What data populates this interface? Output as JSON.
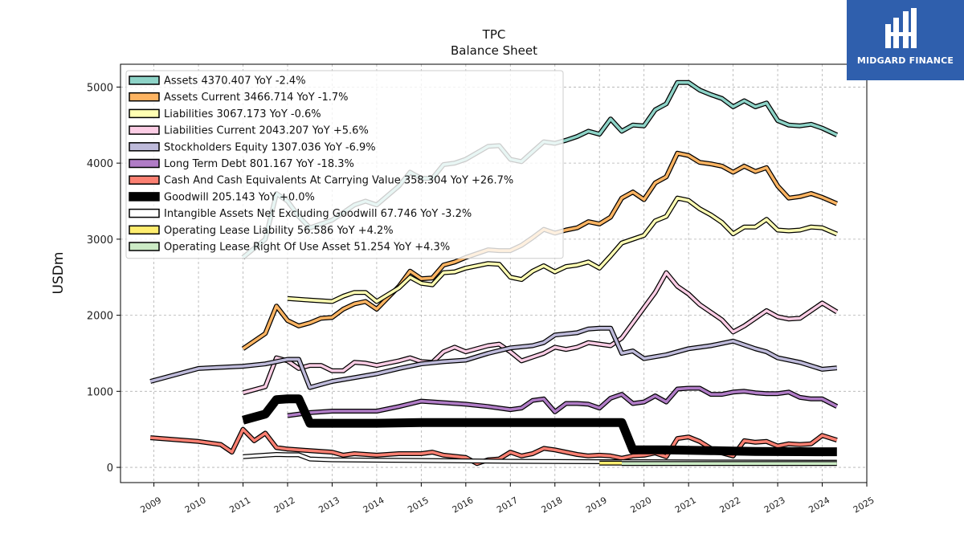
{
  "chart_data": {
    "type": "line",
    "title": "TPC",
    "subtitle": "Balance  Sheet",
    "xlabel": "",
    "ylabel": "USDm",
    "xlim": [
      2008.25,
      2025
    ],
    "ylim": [
      -200,
      5300
    ],
    "yticks": [
      0,
      1000,
      2000,
      3000,
      4000,
      5000
    ],
    "xticks": [
      2009,
      2010,
      2011,
      2012,
      2013,
      2014,
      2015,
      2016,
      2017,
      2018,
      2019,
      2020,
      2021,
      2022,
      2023,
      2024,
      2025
    ],
    "grid": true,
    "legend_position": "top-left",
    "series": [
      {
        "name": "Assets  4370.407 YoY -2.4%",
        "color": "#8dd3c7",
        "x": [
          2011.0,
          2011.5,
          2011.75,
          2012.0,
          2012.25,
          2012.5,
          2013.0,
          2013.25,
          2013.5,
          2013.75,
          2014.0,
          2014.5,
          2014.75,
          2015.0,
          2015.25,
          2015.5,
          2015.75,
          2016.0,
          2016.5,
          2016.75,
          2017.0,
          2017.25,
          2017.5,
          2017.75,
          2018.0,
          2018.25,
          2018.5,
          2018.75,
          2019.0,
          2019.25,
          2019.5,
          2019.75,
          2020.0,
          2020.25,
          2020.5,
          2020.75,
          2021.0,
          2021.25,
          2021.5,
          2021.75,
          2022.0,
          2022.25,
          2022.5,
          2022.75,
          2023.0,
          2023.25,
          2023.5,
          2023.75,
          2024.0,
          2024.33
        ],
        "y": [
          2760,
          3000,
          3600,
          3500,
          3300,
          3150,
          3250,
          3350,
          3450,
          3500,
          3450,
          3700,
          3880,
          3800,
          3800,
          3980,
          4000,
          4050,
          4220,
          4230,
          4050,
          4020,
          4150,
          4280,
          4260,
          4300,
          4350,
          4420,
          4380,
          4580,
          4420,
          4500,
          4490,
          4700,
          4780,
          5060,
          5060,
          4960,
          4900,
          4850,
          4740,
          4820,
          4740,
          4790,
          4560,
          4500,
          4490,
          4510,
          4460,
          4370
        ]
      },
      {
        "name": "Assets Current  3466.714 YoY -1.7%",
        "color": "#fdb462",
        "x": [
          2011.0,
          2011.5,
          2011.75,
          2012.0,
          2012.25,
          2012.5,
          2012.75,
          2013.0,
          2013.25,
          2013.5,
          2013.75,
          2014.0,
          2014.5,
          2014.75,
          2015.0,
          2015.25,
          2015.5,
          2015.75,
          2016.0,
          2016.5,
          2016.75,
          2017.0,
          2017.25,
          2017.5,
          2017.75,
          2018.0,
          2018.25,
          2018.5,
          2018.75,
          2019.0,
          2019.25,
          2019.5,
          2019.75,
          2020.0,
          2020.25,
          2020.5,
          2020.75,
          2021.0,
          2021.25,
          2021.5,
          2021.75,
          2022.0,
          2022.25,
          2022.5,
          2022.75,
          2023.0,
          2023.25,
          2023.5,
          2023.75,
          2024.0,
          2024.33
        ],
        "y": [
          1560,
          1760,
          2120,
          1930,
          1860,
          1900,
          1960,
          1970,
          2080,
          2150,
          2180,
          2080,
          2380,
          2580,
          2480,
          2490,
          2660,
          2700,
          2760,
          2860,
          2850,
          2850,
          2920,
          3020,
          3130,
          3080,
          3120,
          3150,
          3230,
          3200,
          3290,
          3540,
          3620,
          3520,
          3740,
          3820,
          4130,
          4100,
          4010,
          3990,
          3960,
          3880,
          3960,
          3890,
          3940,
          3700,
          3540,
          3560,
          3600,
          3550,
          3467
        ]
      },
      {
        "name": "Liabilities  3067.173 YoY -0.6%",
        "color": "#ffffb3",
        "x": [
          2012.0,
          2012.5,
          2013.0,
          2013.25,
          2013.5,
          2013.75,
          2014.0,
          2014.5,
          2014.75,
          2015.0,
          2015.25,
          2015.5,
          2015.75,
          2016.0,
          2016.5,
          2016.75,
          2017.0,
          2017.25,
          2017.5,
          2017.75,
          2018.0,
          2018.25,
          2018.5,
          2018.75,
          2019.0,
          2019.25,
          2019.5,
          2019.75,
          2020.0,
          2020.25,
          2020.5,
          2020.75,
          2021.0,
          2021.25,
          2021.5,
          2021.75,
          2022.0,
          2022.25,
          2022.5,
          2022.75,
          2023.0,
          2023.25,
          2023.5,
          2023.75,
          2024.0,
          2024.33
        ],
        "y": [
          2220,
          2200,
          2180,
          2250,
          2300,
          2300,
          2180,
          2360,
          2500,
          2420,
          2400,
          2560,
          2570,
          2620,
          2680,
          2670,
          2500,
          2470,
          2580,
          2650,
          2570,
          2640,
          2660,
          2700,
          2620,
          2780,
          2950,
          3000,
          3050,
          3240,
          3300,
          3540,
          3510,
          3400,
          3320,
          3220,
          3070,
          3160,
          3160,
          3260,
          3120,
          3110,
          3120,
          3160,
          3150,
          3067
        ]
      },
      {
        "name": "Liabilities Current  2043.207 YoY +5.6%",
        "color": "#fccde5",
        "x": [
          2011.0,
          2011.5,
          2011.75,
          2012.0,
          2012.25,
          2012.5,
          2012.75,
          2013.0,
          2013.25,
          2013.5,
          2013.75,
          2014.0,
          2014.5,
          2014.75,
          2015.0,
          2015.25,
          2015.5,
          2015.75,
          2016.0,
          2016.5,
          2016.75,
          2017.0,
          2017.25,
          2017.5,
          2017.75,
          2018.0,
          2018.25,
          2018.5,
          2018.75,
          2019.0,
          2019.25,
          2019.5,
          2019.75,
          2020.0,
          2020.25,
          2020.5,
          2020.75,
          2021.0,
          2021.25,
          2021.5,
          2021.75,
          2022.0,
          2022.25,
          2022.5,
          2022.75,
          2023.0,
          2023.25,
          2023.5,
          2023.75,
          2024.0,
          2024.33
        ],
        "y": [
          980,
          1060,
          1440,
          1400,
          1300,
          1340,
          1340,
          1270,
          1270,
          1380,
          1370,
          1340,
          1400,
          1440,
          1390,
          1380,
          1520,
          1580,
          1520,
          1600,
          1620,
          1520,
          1400,
          1450,
          1500,
          1580,
          1550,
          1580,
          1640,
          1620,
          1600,
          1700,
          1900,
          2100,
          2300,
          2560,
          2380,
          2280,
          2140,
          2040,
          1940,
          1780,
          1860,
          1960,
          2060,
          1980,
          1950,
          1960,
          2060,
          2160,
          2043
        ]
      },
      {
        "name": "Stockholders Equity  1307.036 YoY -6.9%",
        "color": "#bebada",
        "x": [
          2008.92,
          2010.0,
          2011.0,
          2011.5,
          2011.75,
          2012.0,
          2012.25,
          2012.5,
          2013.0,
          2013.5,
          2014.0,
          2014.5,
          2015.0,
          2015.5,
          2016.0,
          2016.5,
          2017.0,
          2017.5,
          2017.75,
          2018.0,
          2018.5,
          2018.75,
          2019.0,
          2019.25,
          2019.5,
          2019.75,
          2020.0,
          2020.5,
          2021.0,
          2021.5,
          2022.0,
          2022.5,
          2022.75,
          2023.0,
          2023.5,
          2024.0,
          2024.33
        ],
        "y": [
          1130,
          1300,
          1330,
          1360,
          1390,
          1420,
          1420,
          1050,
          1130,
          1180,
          1230,
          1300,
          1360,
          1390,
          1410,
          1500,
          1570,
          1600,
          1640,
          1740,
          1770,
          1820,
          1830,
          1830,
          1500,
          1530,
          1430,
          1480,
          1560,
          1600,
          1660,
          1560,
          1520,
          1440,
          1380,
          1290,
          1307
        ]
      },
      {
        "name": "Long Term Debt  801.167 YoY -18.3%",
        "color": "#b07cc6",
        "x": [
          2012.0,
          2012.5,
          2013.0,
          2013.5,
          2014.0,
          2014.5,
          2015.0,
          2015.5,
          2016.0,
          2016.5,
          2016.75,
          2017.0,
          2017.25,
          2017.5,
          2017.75,
          2018.0,
          2018.25,
          2018.5,
          2018.75,
          2019.0,
          2019.25,
          2019.5,
          2019.75,
          2020.0,
          2020.25,
          2020.5,
          2020.75,
          2021.0,
          2021.25,
          2021.5,
          2021.75,
          2022.0,
          2022.25,
          2022.5,
          2022.75,
          2023.0,
          2023.25,
          2023.5,
          2023.75,
          2024.0,
          2024.33
        ],
        "y": [
          680,
          720,
          740,
          740,
          740,
          800,
          870,
          850,
          830,
          800,
          780,
          760,
          780,
          880,
          900,
          730,
          840,
          840,
          830,
          780,
          910,
          960,
          840,
          860,
          940,
          860,
          1030,
          1040,
          1040,
          960,
          960,
          990,
          1000,
          980,
          970,
          970,
          990,
          920,
          900,
          900,
          801
        ]
      },
      {
        "name": "Cash And Cash Equivalents At Carrying Value  358.304 YoY +26.7%",
        "color": "#fb8072",
        "x": [
          2008.92,
          2010.0,
          2010.5,
          2010.75,
          2011.0,
          2011.25,
          2011.5,
          2011.75,
          2012.0,
          2012.5,
          2013.0,
          2013.25,
          2013.5,
          2014.0,
          2014.5,
          2015.0,
          2015.25,
          2015.5,
          2016.0,
          2016.25,
          2016.5,
          2016.75,
          2017.0,
          2017.25,
          2017.5,
          2017.75,
          2018.0,
          2018.5,
          2018.75,
          2019.0,
          2019.25,
          2019.5,
          2019.75,
          2020.0,
          2020.25,
          2020.5,
          2020.75,
          2021.0,
          2021.25,
          2021.5,
          2021.75,
          2022.0,
          2022.25,
          2022.5,
          2022.75,
          2023.0,
          2023.25,
          2023.5,
          2023.75,
          2024.0,
          2024.33
        ],
        "y": [
          390,
          340,
          300,
          200,
          500,
          350,
          450,
          260,
          240,
          220,
          200,
          160,
          180,
          160,
          180,
          180,
          200,
          160,
          130,
          50,
          100,
          110,
          200,
          150,
          180,
          250,
          230,
          170,
          150,
          160,
          150,
          120,
          150,
          160,
          190,
          140,
          380,
          400,
          340,
          250,
          190,
          150,
          350,
          330,
          340,
          280,
          310,
          300,
          310,
          420,
          358
        ]
      },
      {
        "name": "Goodwill  205.143 YoY +0.0%",
        "color": "#000000",
        "x": [
          2011.0,
          2011.5,
          2011.75,
          2012.0,
          2012.25,
          2012.5,
          2013.0,
          2014.0,
          2015.0,
          2016.0,
          2017.0,
          2018.0,
          2019.0,
          2019.5,
          2019.75,
          2020.0,
          2020.5,
          2021.0,
          2021.5,
          2022.0,
          2022.5,
          2023.0,
          2023.5,
          2024.0,
          2024.33
        ],
        "y": [
          620,
          700,
          890,
          900,
          900,
          580,
          580,
          580,
          590,
          590,
          590,
          590,
          590,
          590,
          230,
          230,
          230,
          225,
          220,
          215,
          210,
          207,
          206,
          205,
          205
        ]
      },
      {
        "name": "Intangible Assets Net Excluding Goodwill  67.746 YoY -3.2%",
        "color": "#ffffff",
        "x": [
          2011.0,
          2011.5,
          2011.75,
          2012.0,
          2012.25,
          2012.5,
          2013.0,
          2014.0,
          2015.0,
          2016.0,
          2017.0,
          2018.0,
          2019.0,
          2019.5,
          2020.0,
          2021.0,
          2022.0,
          2023.0,
          2024.0,
          2024.33
        ],
        "y": [
          140,
          160,
          170,
          165,
          165,
          110,
          100,
          95,
          90,
          85,
          80,
          78,
          75,
          75,
          74,
          72,
          70,
          69,
          68,
          68
        ]
      },
      {
        "name": "Operating Lease Liability  56.586 YoY +4.2%",
        "color": "#ffed6f",
        "x": [
          2019.0,
          2019.25,
          2019.5
        ],
        "y": [
          55,
          55,
          55
        ]
      },
      {
        "name": "Operating Lease Right Of Use Asset  51.254 YoY +4.3%",
        "color": "#ccebc5",
        "x": [
          2019.5,
          2020.0,
          2020.5,
          2021.0,
          2021.5,
          2022.0,
          2022.5,
          2023.0,
          2023.5,
          2024.0,
          2024.33
        ],
        "y": [
          50,
          50,
          50,
          50,
          50,
          50,
          50,
          50,
          50,
          51,
          51
        ]
      }
    ]
  },
  "logo": {
    "text": "MIDGARD FINANCE",
    "color": "#2f5fad"
  }
}
